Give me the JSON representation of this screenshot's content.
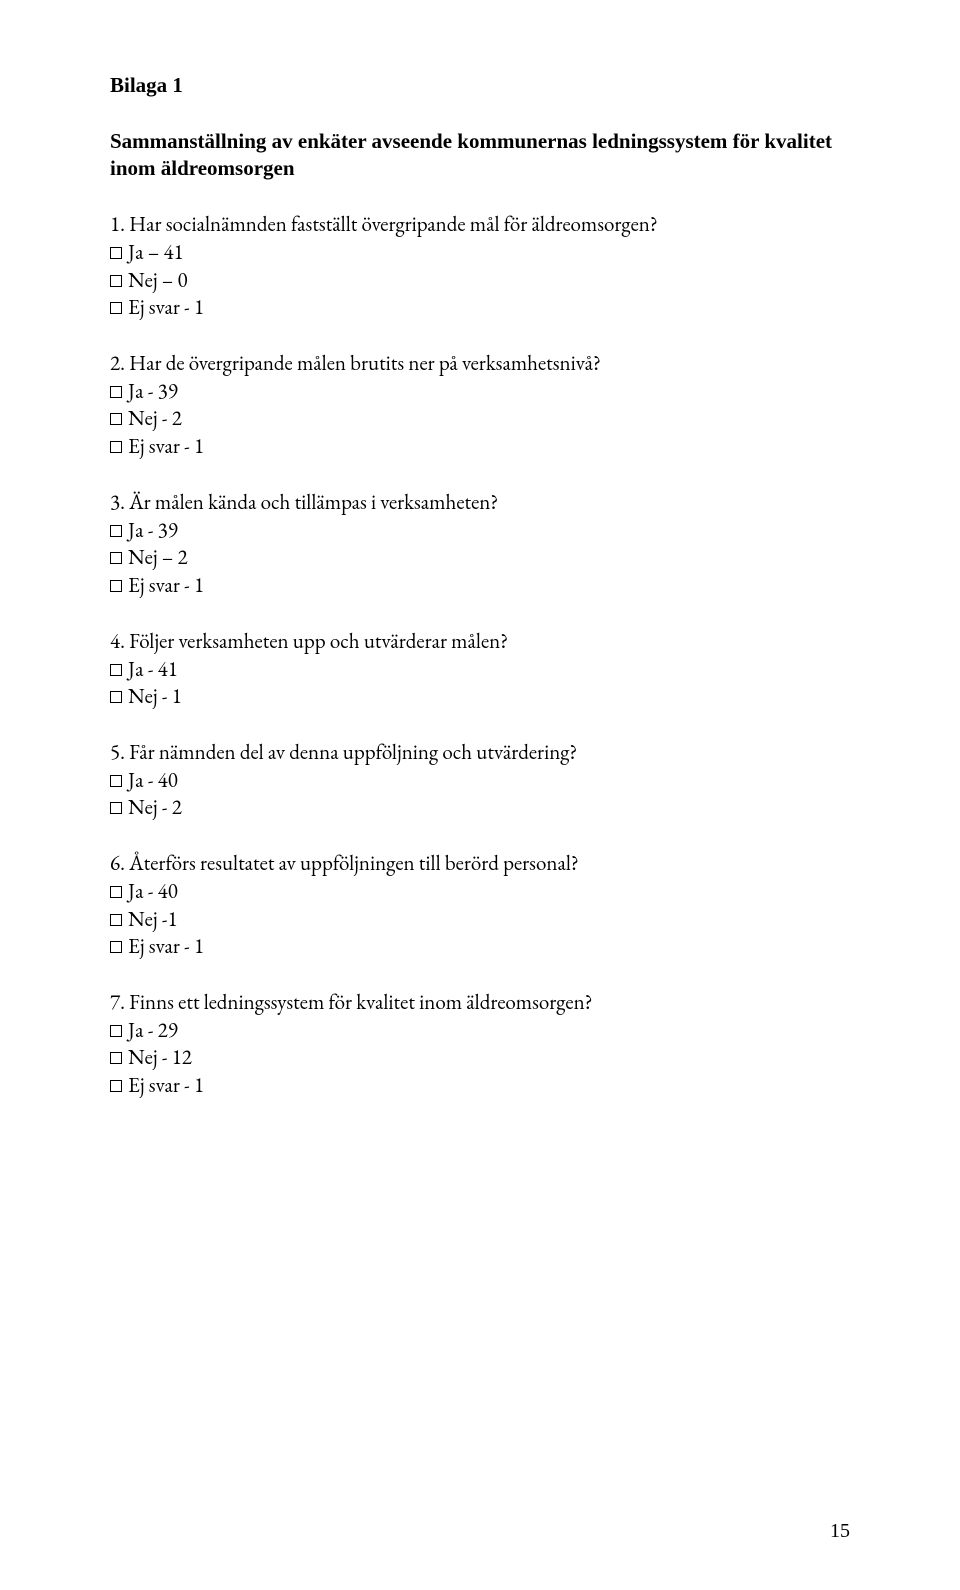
{
  "heading": "Bilaga 1",
  "subtitle_line1": "Sammanställning av enkäter avseende kommunernas ledningssystem för kvalitet",
  "subtitle_line2": "inom äldreomsorgen",
  "questions": [
    {
      "q": "1. Har socialnämnden fastställt övergripande mål för äldreomsorgen?",
      "answers": [
        "Ja – 41",
        "Nej – 0",
        "Ej svar - 1"
      ]
    },
    {
      "q": "2. Har de övergripande målen brutits ner på verksamhetsnivå?",
      "answers": [
        "Ja - 39",
        "Nej - 2",
        "Ej svar - 1"
      ]
    },
    {
      "q": "3. Är målen kända och tillämpas i verksamheten?",
      "answers": [
        "Ja - 39",
        "Nej – 2",
        "Ej svar - 1"
      ]
    },
    {
      "q": "4. Följer verksamheten upp och utvärderar målen?",
      "answers": [
        "Ja - 41",
        "Nej - 1"
      ]
    },
    {
      "q": "5. Får nämnden del av denna uppföljning och utvärdering?",
      "answers": [
        "Ja - 40",
        "Nej - 2"
      ]
    },
    {
      "q": "6. Återförs resultatet av uppföljningen till berörd personal?",
      "answers": [
        "Ja - 40",
        "Nej -1",
        "Ej svar - 1"
      ]
    },
    {
      "q": "7. Finns ett ledningssystem för kvalitet inom äldreomsorgen?",
      "answers": [
        "Ja - 29",
        "Nej - 12",
        "Ej svar - 1"
      ]
    }
  ],
  "page_number": "15",
  "colors": {
    "text": "#000000",
    "background": "#ffffff"
  },
  "fonts": {
    "body": "Garamond",
    "heading": "Times New Roman"
  },
  "font_sizes": {
    "body": 21,
    "heading": 21,
    "page_number": 20
  }
}
